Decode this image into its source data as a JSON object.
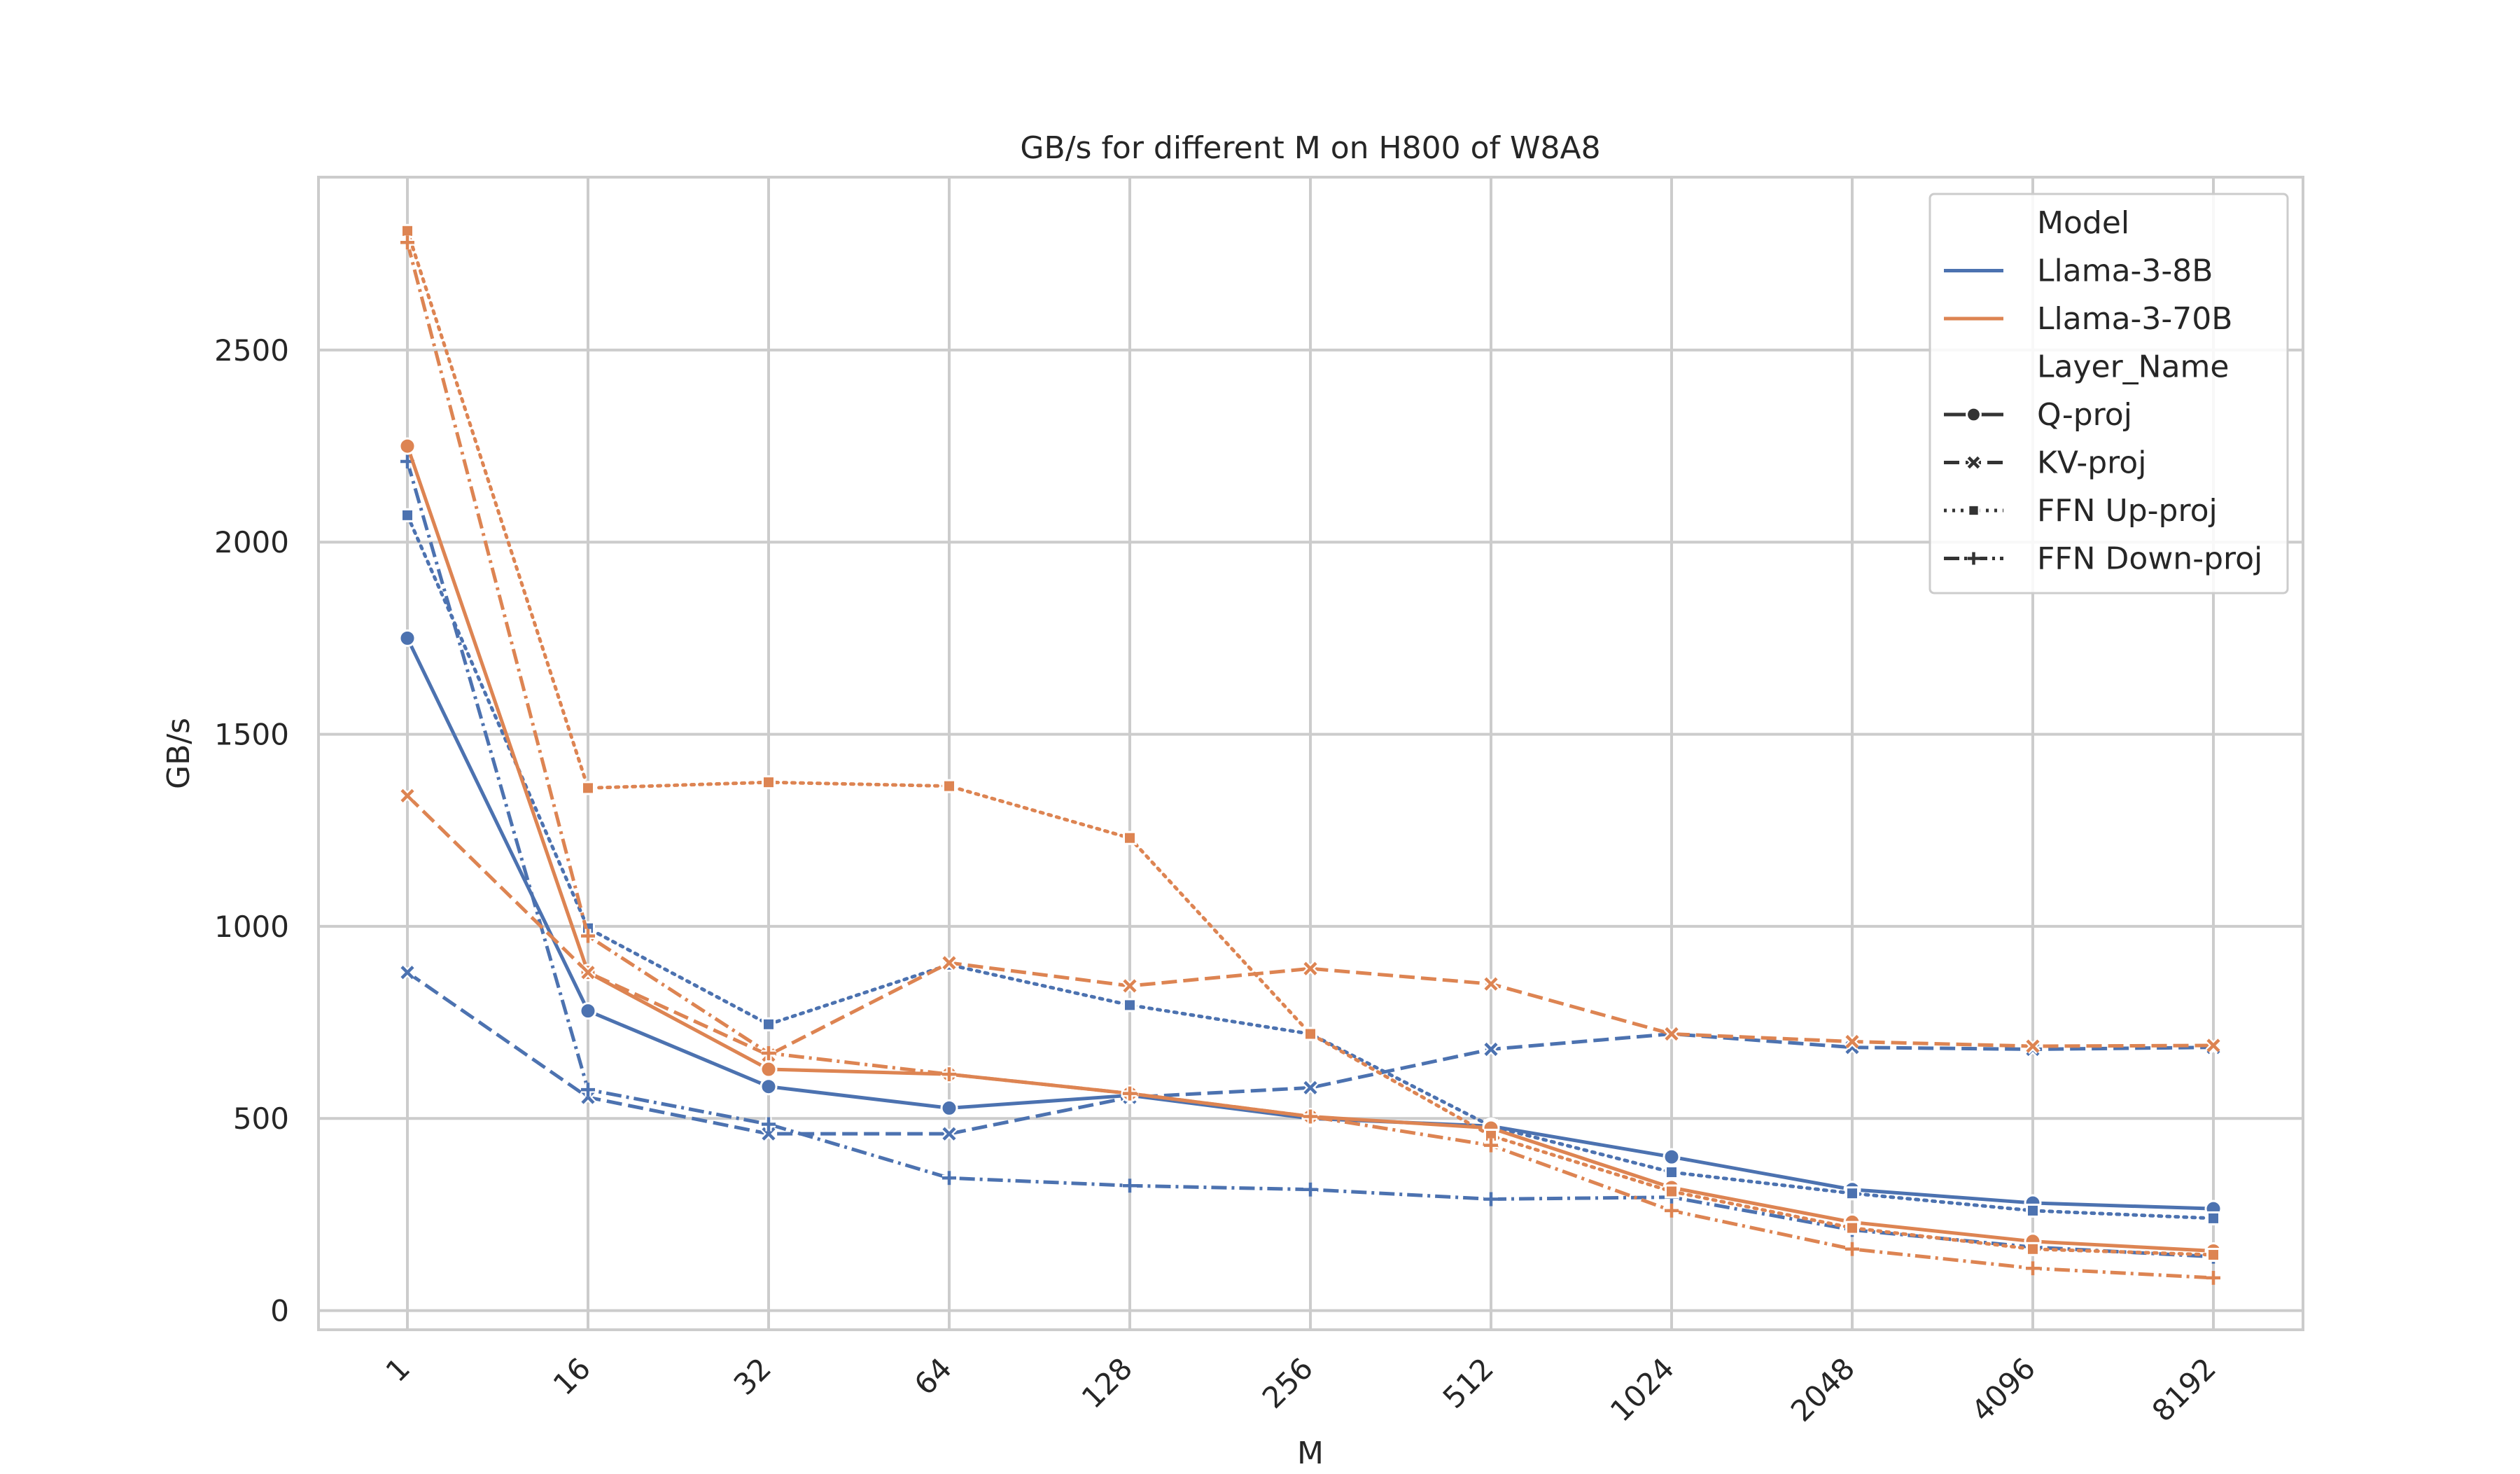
{
  "chart_data": {
    "type": "line",
    "title": "GB/s for different M on H800 of W8A8",
    "xlabel": "M",
    "ylabel": "GB/s",
    "categories": [
      "1",
      "16",
      "32",
      "64",
      "128",
      "256",
      "512",
      "1024",
      "2048",
      "4096",
      "8192"
    ],
    "y_ticks": [
      0,
      500,
      1000,
      1500,
      2000,
      2500
    ],
    "ylim": [
      -50,
      2950
    ],
    "grid": true,
    "legend_position": "top-right",
    "colors": {
      "Llama-3-8B": "#4c72b0",
      "Llama-3-70B": "#dd8452"
    },
    "legend": {
      "hue_title": "Model",
      "hue_entries": [
        "Llama-3-8B",
        "Llama-3-70B"
      ],
      "style_title": "Layer_Name",
      "style_entries": [
        "Q-proj",
        "KV-proj",
        "FFN Up-proj",
        "FFN Down-proj"
      ]
    },
    "series": [
      {
        "name": "Llama-3-8B Q-proj",
        "model": "Llama-3-8B",
        "layer": "Q-proj",
        "values": [
          1750,
          780,
          583,
          527,
          560,
          500,
          480,
          400,
          315,
          280,
          265
        ]
      },
      {
        "name": "Llama-3-8B KV-proj",
        "model": "Llama-3-8B",
        "layer": "KV-proj",
        "values": [
          880,
          555,
          460,
          460,
          555,
          580,
          680,
          720,
          685,
          680,
          685
        ]
      },
      {
        "name": "Llama-3-8B FFN Up-proj",
        "model": "Llama-3-8B",
        "layer": "FFN Up-proj",
        "values": [
          2070,
          995,
          745,
          900,
          795,
          720,
          480,
          360,
          305,
          260,
          240
        ]
      },
      {
        "name": "Llama-3-8B FFN Down-proj",
        "model": "Llama-3-8B",
        "layer": "FFN Down-proj",
        "values": [
          2210,
          575,
          485,
          345,
          325,
          315,
          290,
          295,
          210,
          165,
          140
        ]
      },
      {
        "name": "Llama-3-70B Q-proj",
        "model": "Llama-3-70B",
        "layer": "Q-proj",
        "values": [
          2250,
          880,
          628,
          615,
          565,
          505,
          475,
          320,
          230,
          180,
          155
        ]
      },
      {
        "name": "Llama-3-70B KV-proj",
        "model": "Llama-3-70B",
        "layer": "KV-proj",
        "values": [
          1340,
          880,
          665,
          905,
          845,
          890,
          850,
          720,
          700,
          688,
          690
        ]
      },
      {
        "name": "Llama-3-70B FFN Up-proj",
        "model": "Llama-3-70B",
        "layer": "FFN Up-proj",
        "values": [
          2810,
          1360,
          1375,
          1365,
          1230,
          720,
          455,
          310,
          215,
          160,
          145
        ]
      },
      {
        "name": "Llama-3-70B FFN Down-proj",
        "model": "Llama-3-70B",
        "layer": "FFN Down-proj",
        "values": [
          2780,
          975,
          670,
          615,
          565,
          505,
          430,
          260,
          160,
          110,
          85
        ]
      }
    ]
  }
}
